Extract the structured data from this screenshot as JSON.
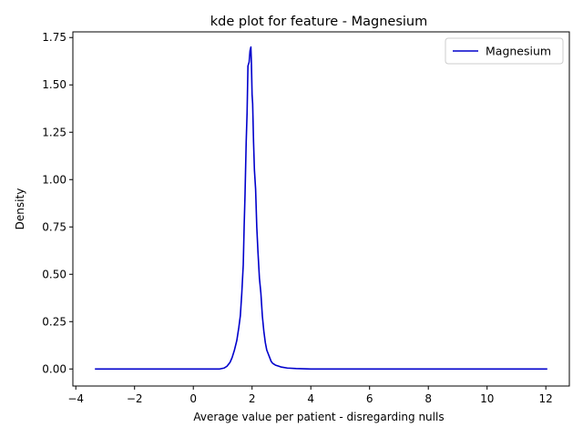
{
  "chart_data": {
    "type": "line",
    "title": "kde plot for feature -  Magnesium",
    "xlabel": "Average value per patient - disregarding nulls",
    "ylabel": "Density",
    "xlim": [
      -4.1,
      12.8
    ],
    "ylim": [
      -0.09,
      1.78
    ],
    "xticks": [
      -4,
      -2,
      0,
      2,
      4,
      6,
      8,
      10,
      12
    ],
    "xtick_labels": [
      "−4",
      "−2",
      "0",
      "2",
      "4",
      "6",
      "8",
      "10",
      "12"
    ],
    "yticks": [
      0.0,
      0.25,
      0.5,
      0.75,
      1.0,
      1.25,
      1.5,
      1.75
    ],
    "ytick_labels": [
      "0.00",
      "0.25",
      "0.50",
      "0.75",
      "1.00",
      "1.25",
      "1.50",
      "1.75"
    ],
    "grid": false,
    "legend_position": "top-right",
    "series": [
      {
        "name": "Magnesium",
        "color": "#0000cc",
        "x": [
          -3.35,
          -2.0,
          0.0,
          0.7,
          0.9,
          1.05,
          1.15,
          1.25,
          1.32,
          1.4,
          1.48,
          1.55,
          1.6,
          1.65,
          1.7,
          1.73,
          1.76,
          1.8,
          1.83,
          1.86,
          1.9,
          1.93,
          1.96,
          1.98,
          2.0,
          2.02,
          2.05,
          2.08,
          2.12,
          2.16,
          2.2,
          2.25,
          2.3,
          2.35,
          2.4,
          2.45,
          2.5,
          2.55,
          2.6,
          2.65,
          2.7,
          2.75,
          2.8,
          2.9,
          3.0,
          3.2,
          3.5,
          4.0,
          5.0,
          6.0,
          8.0,
          10.0,
          12.05
        ],
        "y": [
          0.0,
          0.0,
          0.0,
          0.0,
          0.0,
          0.005,
          0.015,
          0.035,
          0.06,
          0.1,
          0.15,
          0.22,
          0.28,
          0.4,
          0.55,
          0.75,
          0.92,
          1.2,
          1.35,
          1.6,
          1.62,
          1.68,
          1.7,
          1.6,
          1.45,
          1.4,
          1.2,
          1.05,
          0.95,
          0.75,
          0.62,
          0.48,
          0.4,
          0.28,
          0.2,
          0.14,
          0.1,
          0.08,
          0.06,
          0.04,
          0.03,
          0.025,
          0.02,
          0.015,
          0.01,
          0.005,
          0.002,
          0.0,
          0.0,
          0.0,
          0.0,
          0.0,
          0.0
        ]
      }
    ]
  }
}
